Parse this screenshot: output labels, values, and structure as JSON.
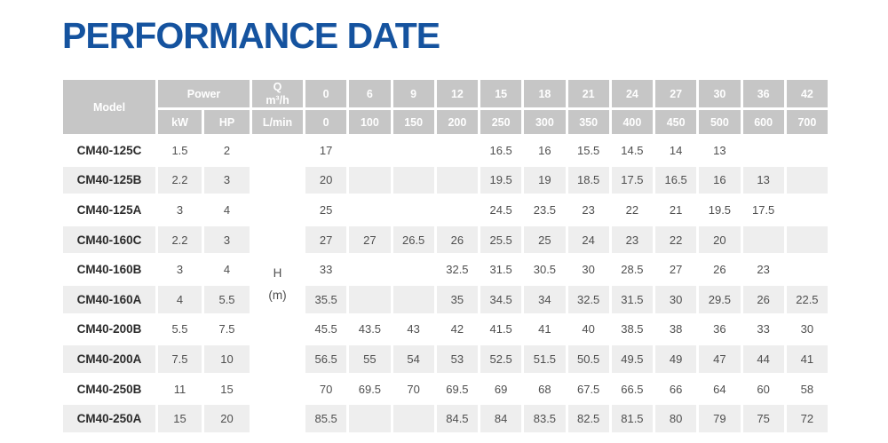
{
  "title": "PERFORMANCE DATE",
  "colors": {
    "title_blue": "#15539f",
    "header_gray": "#c6c6c6",
    "stripe_gray": "#eeeeee",
    "data_text": "#4f4f4f"
  },
  "table": {
    "header": {
      "model": "Model",
      "power": "Power",
      "kw": "kW",
      "hp": "HP",
      "q_label": "Q",
      "q_unit": "m³/h",
      "lmin": "L/min",
      "flow_m3h": [
        "0",
        "6",
        "9",
        "12",
        "15",
        "18",
        "21",
        "24",
        "27",
        "30",
        "36",
        "42"
      ],
      "flow_lmin": [
        "0",
        "100",
        "150",
        "200",
        "250",
        "300",
        "350",
        "400",
        "450",
        "500",
        "600",
        "700"
      ]
    },
    "h_label": "H",
    "h_unit": "(m)",
    "rows": [
      {
        "model": "CM40-125C",
        "kw": "1.5",
        "hp": "2",
        "values": [
          "17",
          "",
          "",
          "",
          "16.5",
          "16",
          "15.5",
          "14.5",
          "14",
          "13",
          "",
          ""
        ]
      },
      {
        "model": "CM40-125B",
        "kw": "2.2",
        "hp": "3",
        "values": [
          "20",
          "",
          "",
          "",
          "19.5",
          "19",
          "18.5",
          "17.5",
          "16.5",
          "16",
          "13",
          ""
        ]
      },
      {
        "model": "CM40-125A",
        "kw": "3",
        "hp": "4",
        "values": [
          "25",
          "",
          "",
          "",
          "24.5",
          "23.5",
          "23",
          "22",
          "21",
          "19.5",
          "17.5",
          ""
        ]
      },
      {
        "model": "CM40-160C",
        "kw": "2.2",
        "hp": "3",
        "values": [
          "27",
          "27",
          "26.5",
          "26",
          "25.5",
          "25",
          "24",
          "23",
          "22",
          "20",
          "",
          ""
        ]
      },
      {
        "model": "CM40-160B",
        "kw": "3",
        "hp": "4",
        "values": [
          "33",
          "",
          "",
          "32.5",
          "31.5",
          "30.5",
          "30",
          "28.5",
          "27",
          "26",
          "23",
          ""
        ]
      },
      {
        "model": "CM40-160A",
        "kw": "4",
        "hp": "5.5",
        "values": [
          "35.5",
          "",
          "",
          "35",
          "34.5",
          "34",
          "32.5",
          "31.5",
          "30",
          "29.5",
          "26",
          "22.5"
        ]
      },
      {
        "model": "CM40-200B",
        "kw": "5.5",
        "hp": "7.5",
        "values": [
          "45.5",
          "43.5",
          "43",
          "42",
          "41.5",
          "41",
          "40",
          "38.5",
          "38",
          "36",
          "33",
          "30"
        ]
      },
      {
        "model": "CM40-200A",
        "kw": "7.5",
        "hp": "10",
        "values": [
          "56.5",
          "55",
          "54",
          "53",
          "52.5",
          "51.5",
          "50.5",
          "49.5",
          "49",
          "47",
          "44",
          "41"
        ]
      },
      {
        "model": "CM40-250B",
        "kw": "11",
        "hp": "15",
        "values": [
          "70",
          "69.5",
          "70",
          "69.5",
          "69",
          "68",
          "67.5",
          "66.5",
          "66",
          "64",
          "60",
          "58"
        ]
      },
      {
        "model": "CM40-250A",
        "kw": "15",
        "hp": "20",
        "values": [
          "85.5",
          "",
          "",
          "84.5",
          "84",
          "83.5",
          "82.5",
          "81.5",
          "80",
          "79",
          "75",
          "72"
        ]
      }
    ]
  }
}
